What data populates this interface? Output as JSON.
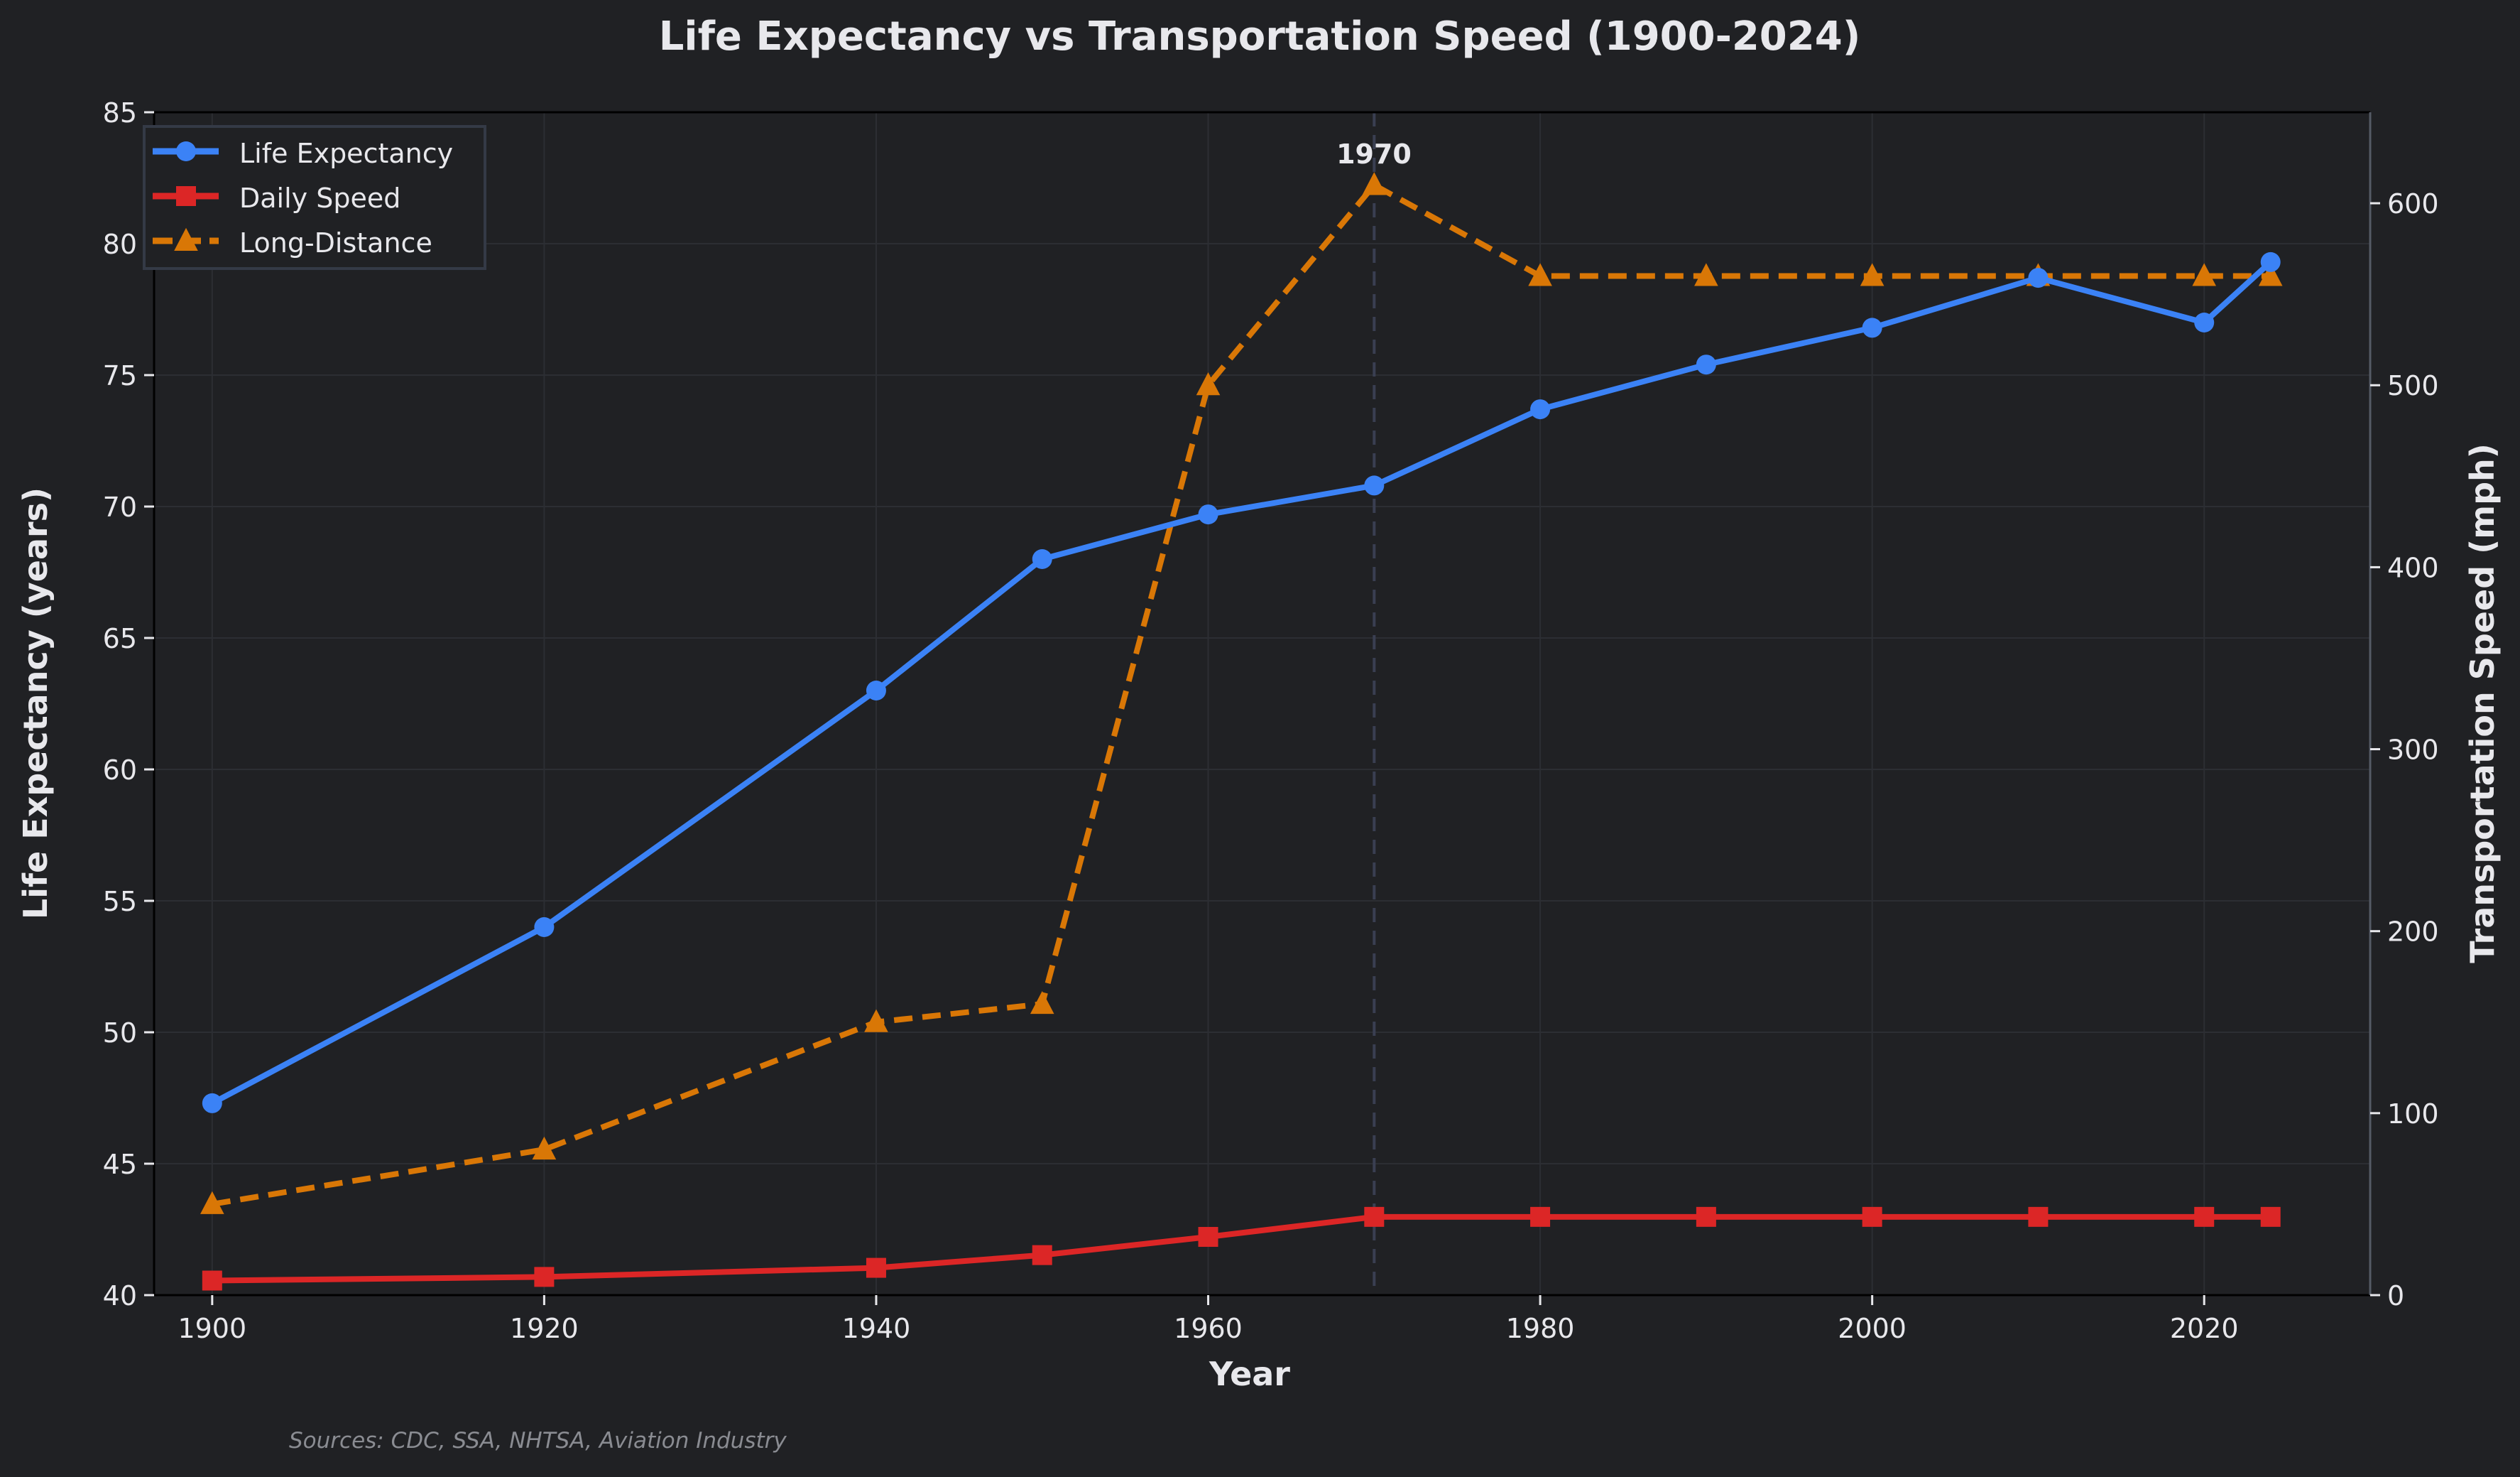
{
  "chart_data": {
    "type": "line",
    "title": "Life Expectancy vs Transportation Speed (1900-2024)",
    "xlabel": "Year",
    "ylabel": "Life Expectancy (years)",
    "ylabel_right": "Transportation Speed (mph)",
    "x": [
      1900,
      1920,
      1940,
      1950,
      1960,
      1970,
      1980,
      1990,
      2000,
      2010,
      2020,
      2024
    ],
    "xlim": [
      1896.5,
      2030
    ],
    "ylim": [
      40,
      85
    ],
    "ylim_right": [
      0,
      650
    ],
    "xticks": [
      1900,
      1920,
      1940,
      1960,
      1980,
      2000,
      2020
    ],
    "yticks": [
      40,
      45,
      50,
      55,
      60,
      65,
      70,
      75,
      80,
      85
    ],
    "yticks_right": [
      0,
      100,
      200,
      300,
      400,
      500,
      600
    ],
    "grid": true,
    "legend_position": "top-left",
    "series": [
      {
        "name": "Life Expectancy",
        "axis": "left",
        "color": "#3b82f6",
        "marker": "circle",
        "style": "solid",
        "values": [
          47.3,
          54.0,
          63.0,
          68.0,
          69.7,
          70.8,
          73.7,
          75.4,
          76.8,
          78.7,
          77.0,
          79.3
        ]
      },
      {
        "name": "Daily Speed",
        "axis": "right",
        "color": "#dc2626",
        "marker": "square",
        "style": "solid",
        "values": [
          8,
          10,
          15,
          22,
          32,
          43,
          43,
          43,
          43,
          43,
          43,
          43
        ]
      },
      {
        "name": "Long-Distance",
        "axis": "right",
        "color": "#d97706",
        "marker": "triangle",
        "style": "dashed",
        "values": [
          50,
          80,
          150,
          160,
          500,
          610,
          560,
          560,
          560,
          560,
          560,
          560
        ]
      }
    ],
    "annotations": [
      {
        "x": 1970,
        "text": "1970",
        "type": "vertical-dashed-line"
      }
    ],
    "source_note": "Sources: CDC, SSA, NHTSA, Aviation Industry"
  },
  "colors": {
    "background": "#202124",
    "text": "#e8e8ec",
    "grid": "#2c2e33",
    "legend_border": "#343a46",
    "vline": "#3a3f52"
  }
}
